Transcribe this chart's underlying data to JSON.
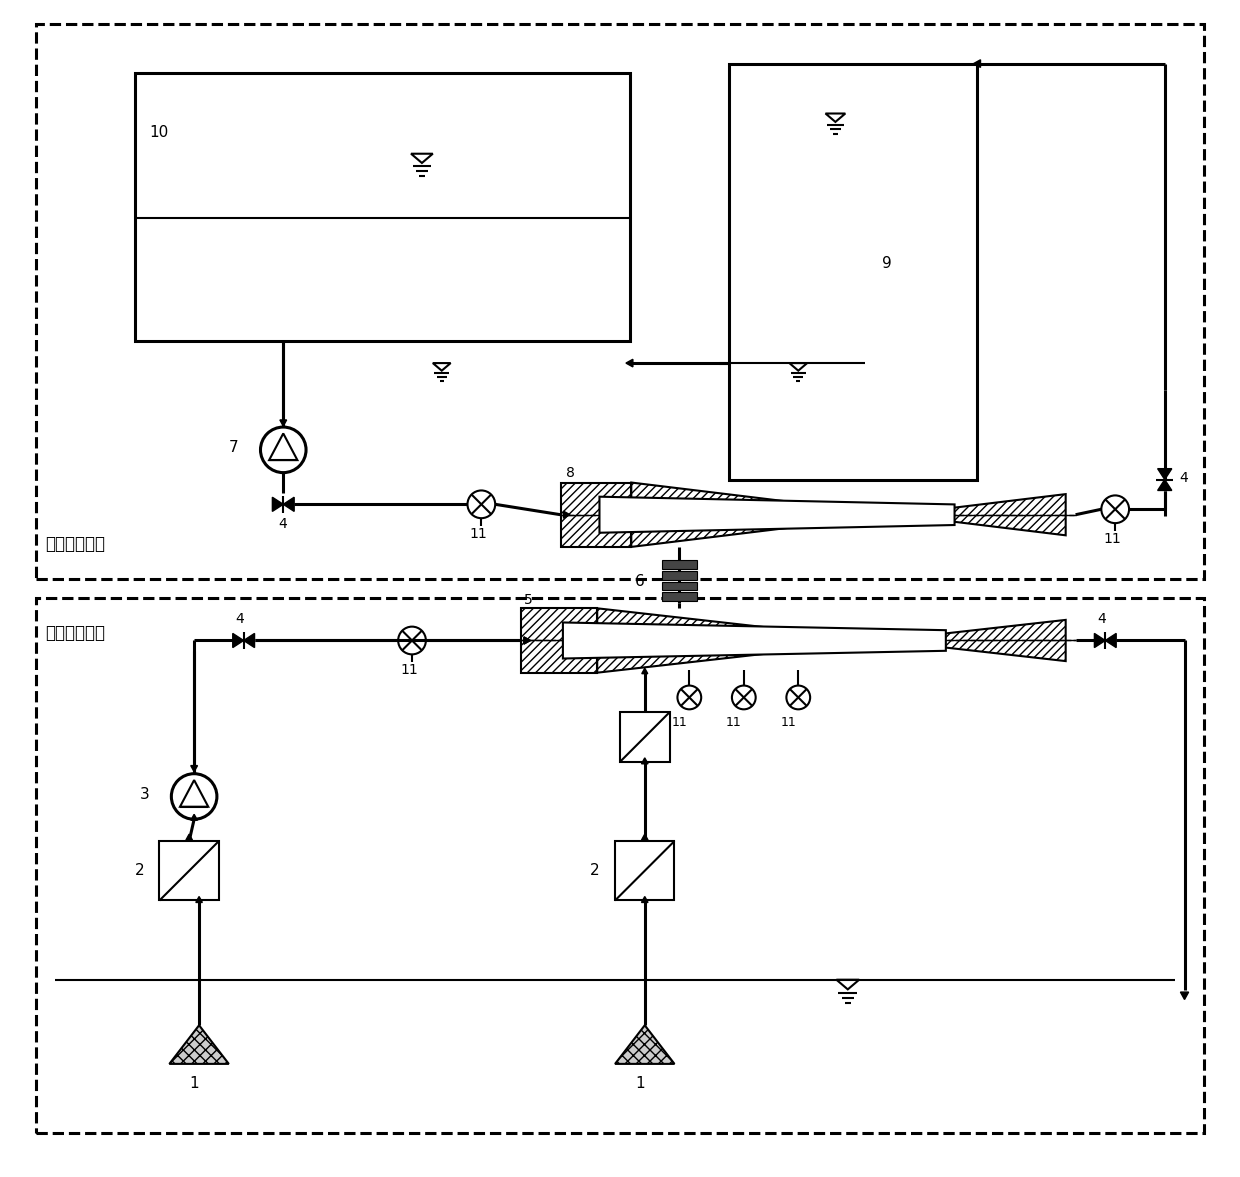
{
  "bg_color": "#ffffff",
  "line_color": "#000000",
  "top_box_label": "淡水循环系统",
  "bottom_box_label": "海水循环系统",
  "figsize": [
    12.4,
    11.77
  ],
  "dpi": 100
}
